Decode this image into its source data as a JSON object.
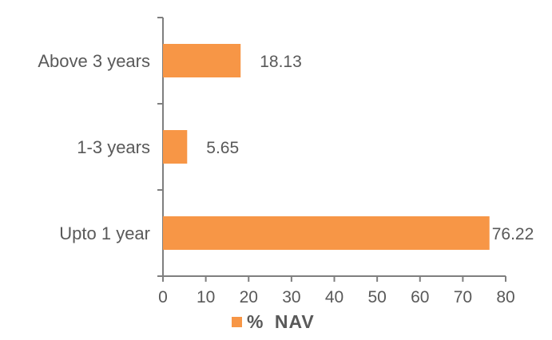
{
  "chart_data": {
    "type": "bar",
    "orientation": "horizontal",
    "categories": [
      "Above 3 years",
      "1-3 years",
      "Upto 1 year"
    ],
    "series": [
      {
        "name": "%  NAV",
        "values": [
          18.13,
          5.65,
          76.22
        ],
        "labels": [
          "18.13",
          "5.65",
          "76.22"
        ],
        "color": "#F79646"
      }
    ],
    "xlim": [
      0,
      80
    ],
    "xticks": [
      "0",
      "10",
      "20",
      "30",
      "40",
      "50",
      "60",
      "70",
      "80"
    ],
    "grid": false,
    "legend": "bottom",
    "axis_color": "#7f7f7f",
    "text_color": "#595959"
  }
}
